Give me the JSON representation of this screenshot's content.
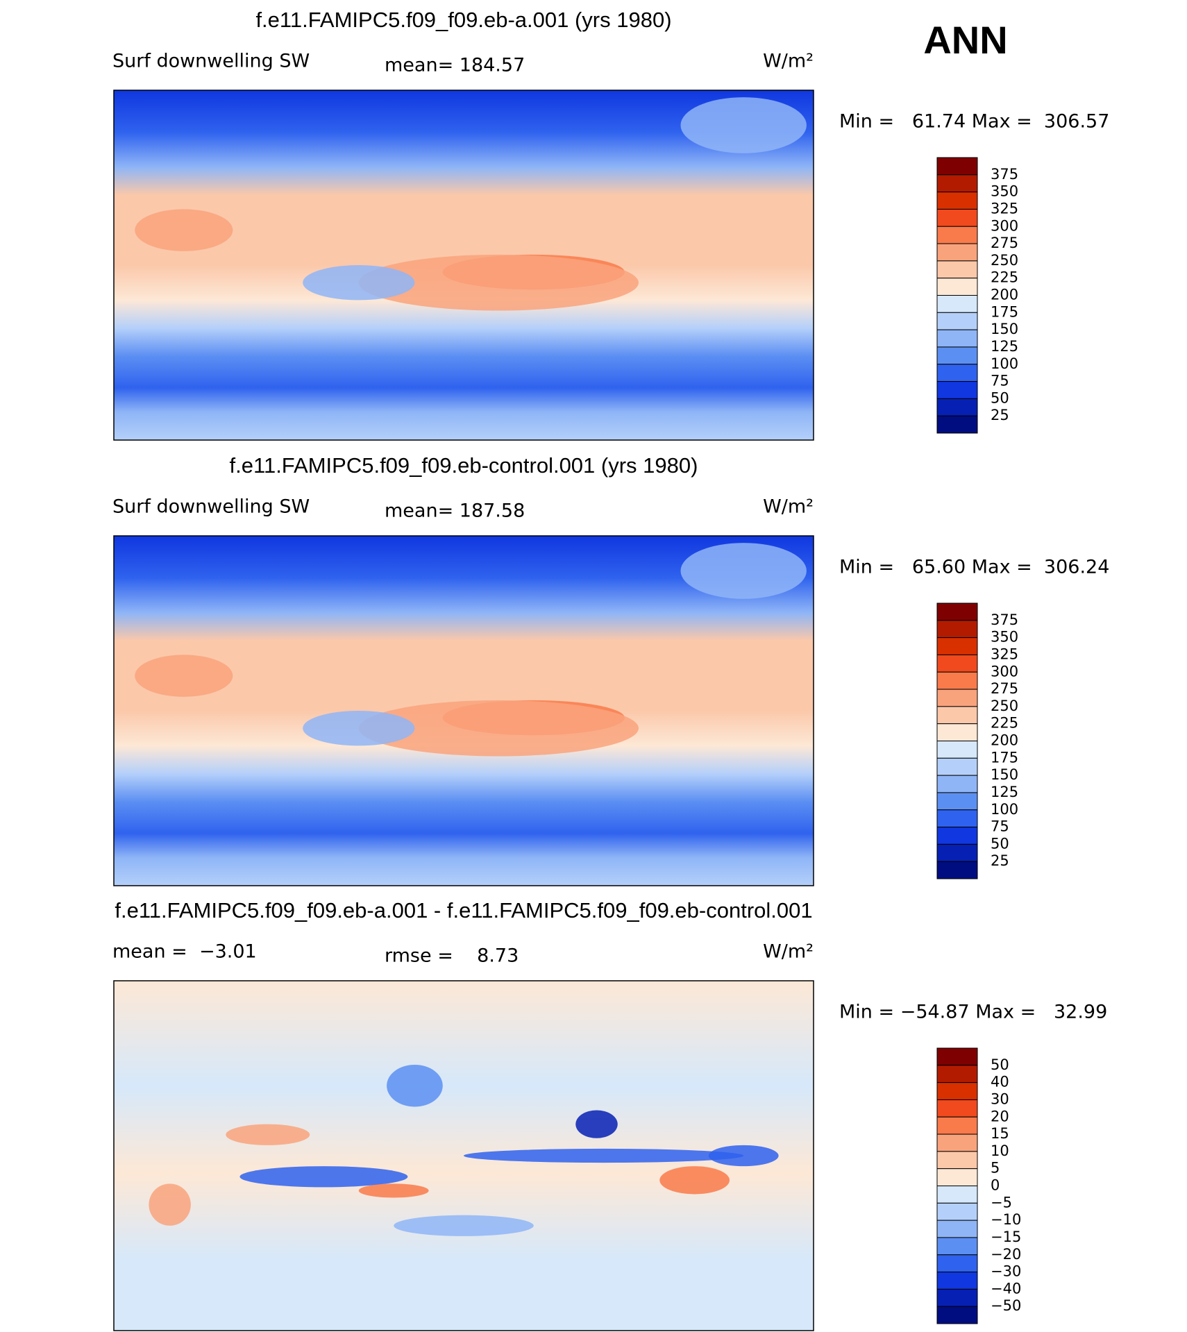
{
  "header": {
    "season": "ANN"
  },
  "panels": [
    {
      "title": "f.e11.FAMIPC5.f09_f09.eb-a.001 (yrs 1980)",
      "left": "Surf downwelling SW",
      "center": "mean= 184.57",
      "units": "W/m²",
      "minmax": "Min =   61.74 Max =  306.57",
      "colorbar": {
        "labels": [
          "375",
          "350",
          "325",
          "300",
          "275",
          "250",
          "225",
          "200",
          "175",
          "150",
          "125",
          "100",
          "75",
          "50",
          "25"
        ],
        "colors": [
          "#7f0000",
          "#b31b00",
          "#d93000",
          "#f04a1e",
          "#f97a4a",
          "#f9a37d",
          "#fbc8aa",
          "#fde8d6",
          "#d6e8fa",
          "#b4d0fa",
          "#8fb5f7",
          "#5c8ff2",
          "#2f62ee",
          "#1037e0",
          "#0620b4",
          "#000d80"
        ]
      }
    },
    {
      "title": "f.e11.FAMIPC5.f09_f09.eb-control.001 (yrs 1980)",
      "left": "Surf downwelling SW",
      "center": "mean= 187.58",
      "units": "W/m²",
      "minmax": "Min =   65.60 Max =  306.24",
      "colorbar": {
        "labels": [
          "375",
          "350",
          "325",
          "300",
          "275",
          "250",
          "225",
          "200",
          "175",
          "150",
          "125",
          "100",
          "75",
          "50",
          "25"
        ],
        "colors": [
          "#7f0000",
          "#b31b00",
          "#d93000",
          "#f04a1e",
          "#f97a4a",
          "#f9a37d",
          "#fbc8aa",
          "#fde8d6",
          "#d6e8fa",
          "#b4d0fa",
          "#8fb5f7",
          "#5c8ff2",
          "#2f62ee",
          "#1037e0",
          "#0620b4",
          "#000d80"
        ]
      }
    },
    {
      "title": "f.e11.FAMIPC5.f09_f09.eb-a.001 - f.e11.FAMIPC5.f09_f09.eb-control.001",
      "left": "mean =  −3.01",
      "center": "rmse =    8.73",
      "units": "W/m²",
      "minmax": "Min = −54.87 Max =   32.99",
      "colorbar": {
        "labels": [
          "50",
          "40",
          "30",
          "20",
          "15",
          "10",
          "5",
          "0",
          "−5",
          "−10",
          "−15",
          "−20",
          "−30",
          "−40",
          "−50"
        ],
        "colors": [
          "#7f0000",
          "#b31b00",
          "#d93000",
          "#f04a1e",
          "#f97a4a",
          "#f9a37d",
          "#fbc8aa",
          "#fde8d6",
          "#d6e8fa",
          "#b4d0fa",
          "#8fb5f7",
          "#5c8ff2",
          "#2f62ee",
          "#1037e0",
          "#0620b4",
          "#000d80"
        ]
      }
    }
  ]
}
